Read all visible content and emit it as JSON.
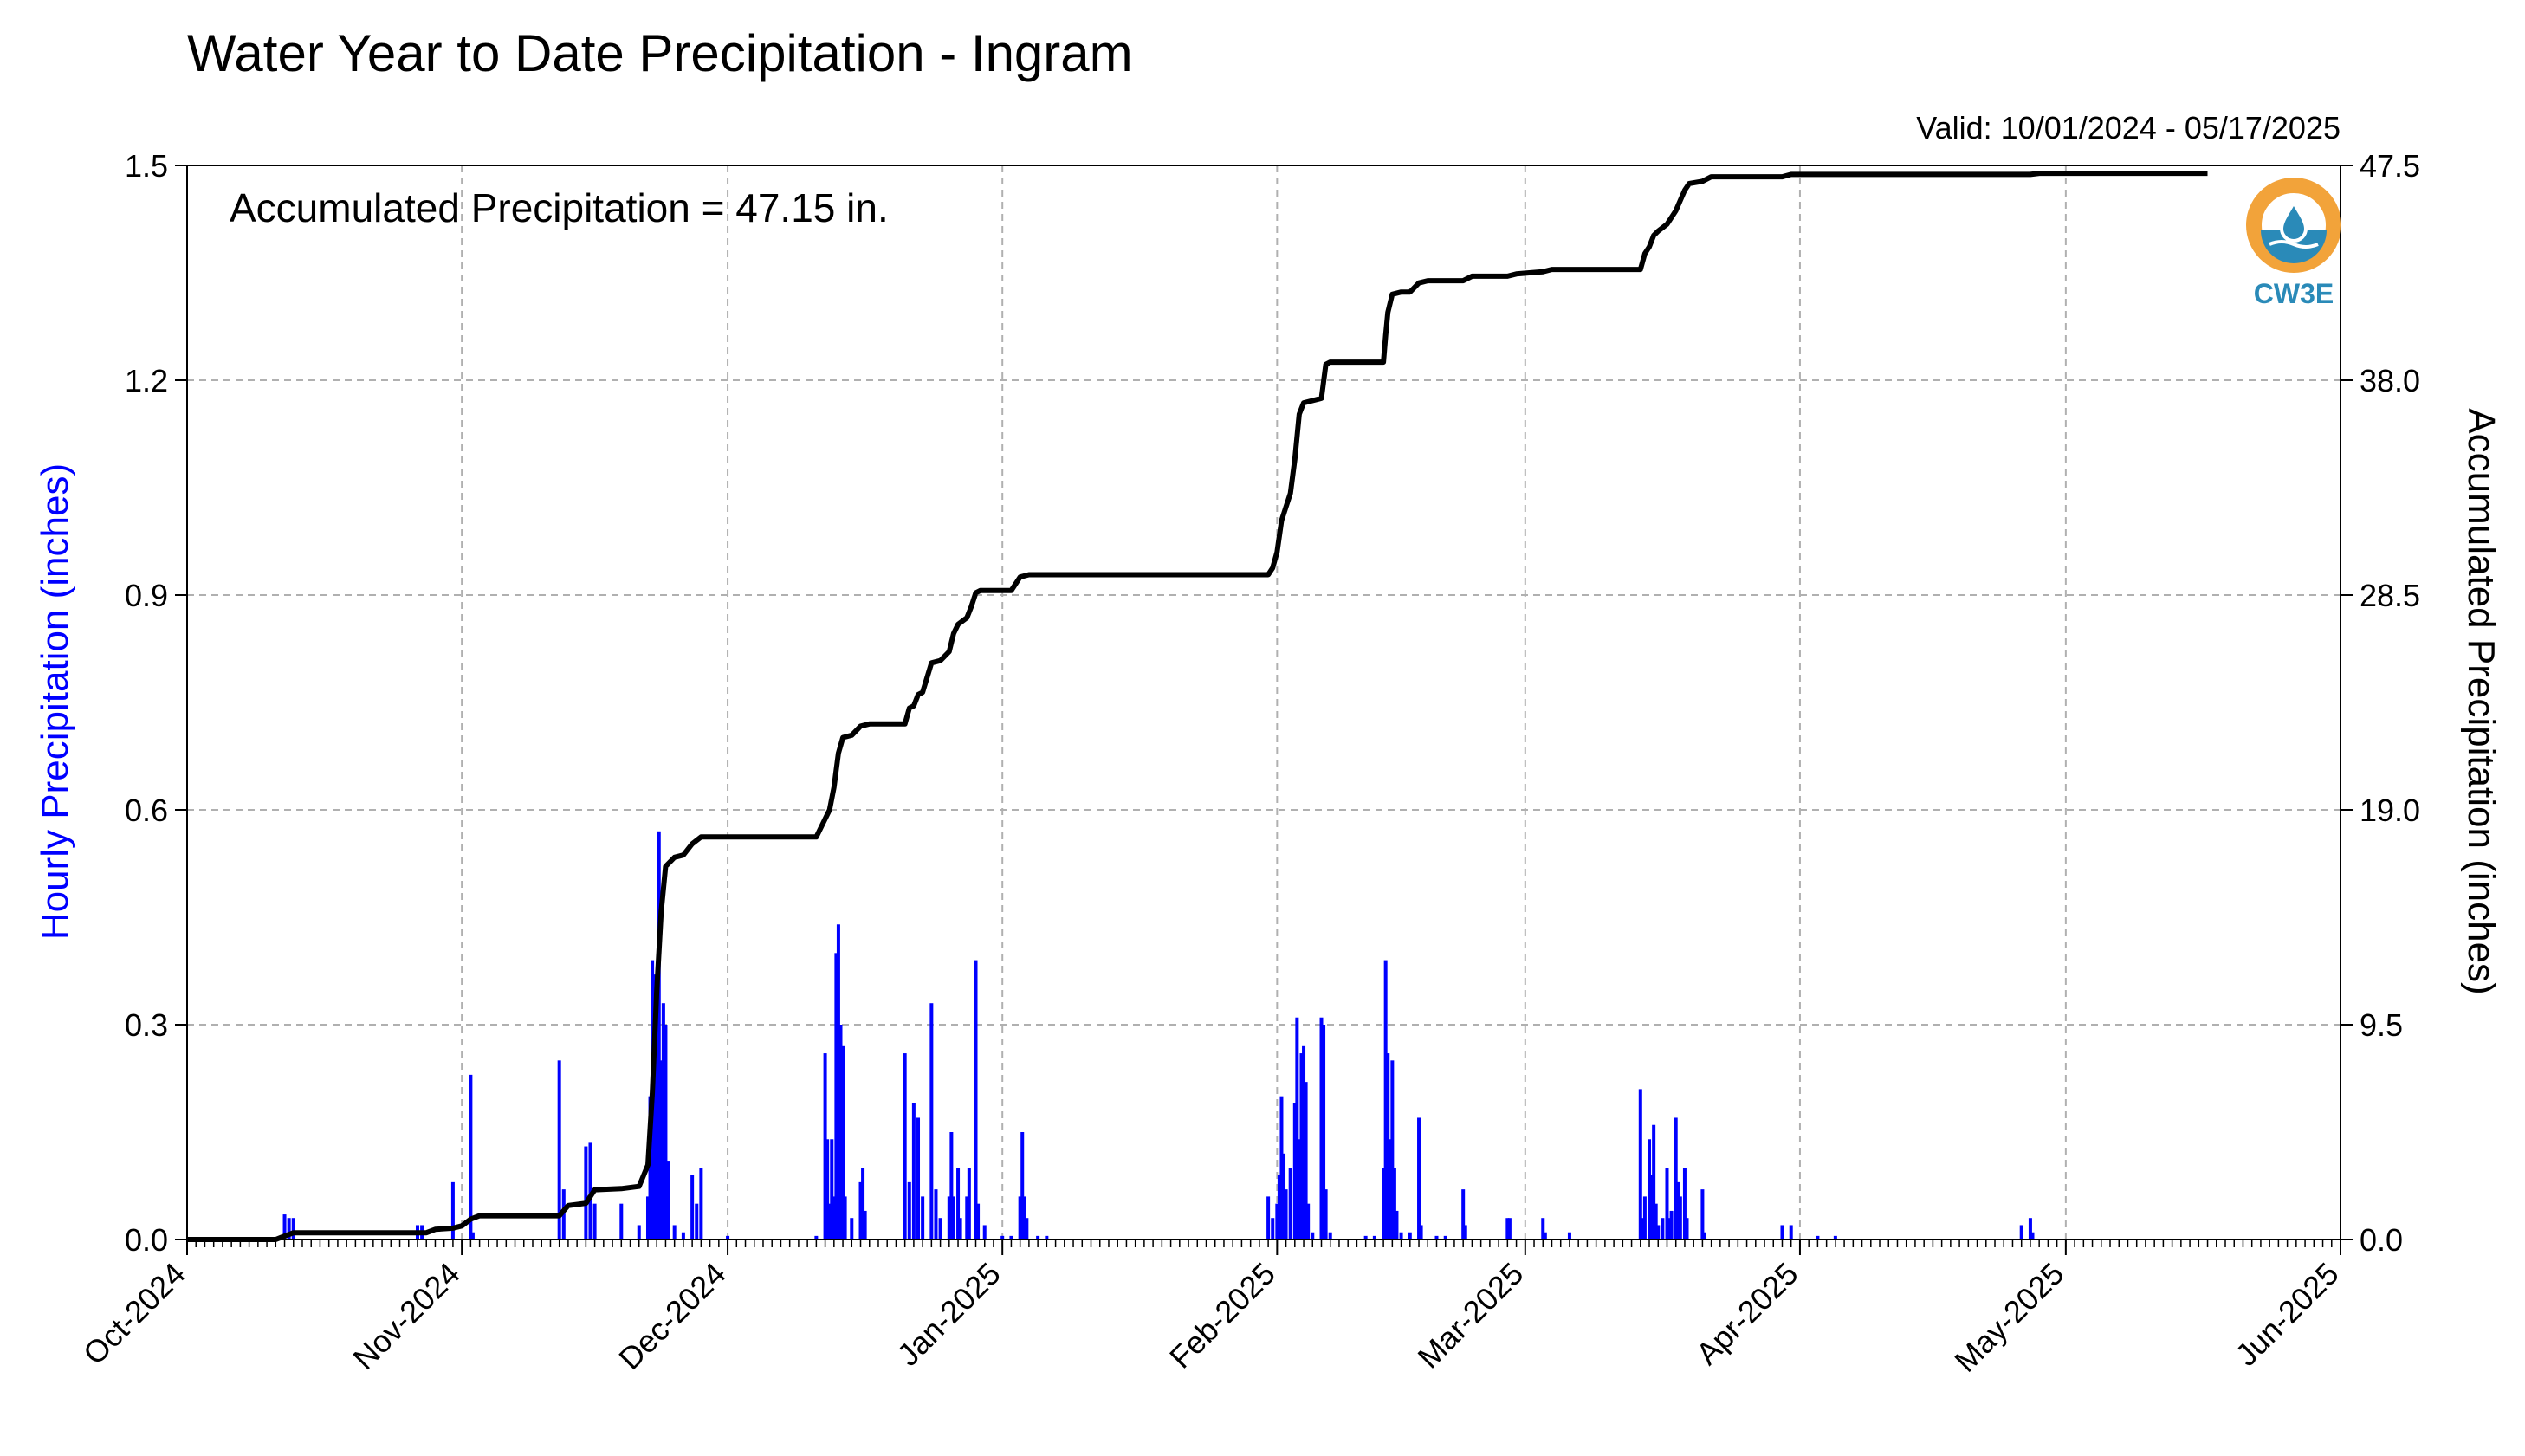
{
  "chart_data": {
    "type": "bar",
    "title": "Water Year to Date Precipitation - Ingram",
    "valid_label": "Valid: 10/01/2024 - 05/17/2025",
    "annotation": "Accumulated Precipitation = 47.15 in.",
    "logo_text": "CW3E",
    "y_left_label": "Hourly Precipitation (inches)",
    "y_right_label": "Accumulated Precipitation (inches)",
    "y_left_lim": [
      0,
      1.5
    ],
    "y_right_lim": [
      0,
      47.5
    ],
    "y_left_ticks": [
      "0.0",
      "0.3",
      "0.6",
      "0.9",
      "1.2",
      "1.5"
    ],
    "y_right_ticks": [
      "0.0",
      "9.5",
      "19.0",
      "28.5",
      "38.0",
      "47.5"
    ],
    "x_lim": [
      "2024-10-01",
      "2025-06-01"
    ],
    "x_tick_dates": [
      "2024-10-01",
      "2024-11-01",
      "2024-12-01",
      "2025-01-01",
      "2025-02-01",
      "2025-03-01",
      "2025-04-01",
      "2025-05-01",
      "2025-06-01"
    ],
    "x_ticks": [
      "Oct-2024",
      "Nov-2024",
      "Dec-2024",
      "Jan-2025",
      "Feb-2025",
      "Mar-2025",
      "Apr-2025",
      "May-2025",
      "Jun-2025"
    ],
    "grid": true,
    "colors": {
      "hourly": "#0000ff",
      "accumulated": "#000000",
      "left_axis_label": "#0000ff",
      "grid": "#b0b0b0",
      "logo_orange": "#f2a33a",
      "logo_blue": "#2a8ab8"
    },
    "series": [
      {
        "name": "Hourly Precipitation (inches)",
        "kind": "bar",
        "points": [
          [
            "2024-10-12",
            0.035
          ],
          [
            "2024-10-12T12:00",
            0.03
          ],
          [
            "2024-10-13",
            0.03
          ],
          [
            "2024-10-27",
            0.02
          ],
          [
            "2024-10-27T12:00",
            0.02
          ],
          [
            "2024-10-31",
            0.08
          ],
          [
            "2024-11-02",
            0.23
          ],
          [
            "2024-11-02T06:00",
            0.01
          ],
          [
            "2024-11-12",
            0.25
          ],
          [
            "2024-11-12T12:00",
            0.07
          ],
          [
            "2024-11-15",
            0.13
          ],
          [
            "2024-11-15T12:00",
            0.135
          ],
          [
            "2024-11-16",
            0.05
          ],
          [
            "2024-11-19",
            0.05
          ],
          [
            "2024-11-21",
            0.02
          ],
          [
            "2024-11-22",
            0.06
          ],
          [
            "2024-11-22T06:00",
            0.2
          ],
          [
            "2024-11-22T12:00",
            0.39
          ],
          [
            "2024-11-22T18:00",
            0.37
          ],
          [
            "2024-11-23",
            0.33
          ],
          [
            "2024-11-23T06:00",
            0.57
          ],
          [
            "2024-11-23T12:00",
            0.25
          ],
          [
            "2024-11-23T18:00",
            0.33
          ],
          [
            "2024-11-24",
            0.3
          ],
          [
            "2024-11-24T06:00",
            0.11
          ],
          [
            "2024-11-25",
            0.02
          ],
          [
            "2024-11-26",
            0.01
          ],
          [
            "2024-11-27",
            0.09
          ],
          [
            "2024-11-27T12:00",
            0.05
          ],
          [
            "2024-11-28",
            0.1
          ],
          [
            "2024-12-01",
            0.005
          ],
          [
            "2024-12-11",
            0.005
          ],
          [
            "2024-12-12",
            0.26
          ],
          [
            "2024-12-12T06:00",
            0.14
          ],
          [
            "2024-12-12T12:00",
            0.05
          ],
          [
            "2024-12-12T18:00",
            0.14
          ],
          [
            "2024-12-13",
            0.06
          ],
          [
            "2024-12-13T06:00",
            0.4
          ],
          [
            "2024-12-13T12:00",
            0.44
          ],
          [
            "2024-12-13T18:00",
            0.3
          ],
          [
            "2024-12-14",
            0.27
          ],
          [
            "2024-12-14T06:00",
            0.06
          ],
          [
            "2024-12-15",
            0.03
          ],
          [
            "2024-12-16",
            0.08
          ],
          [
            "2024-12-16T06:00",
            0.1
          ],
          [
            "2024-12-16T12:00",
            0.04
          ],
          [
            "2024-12-21",
            0.26
          ],
          [
            "2024-12-21T12:00",
            0.08
          ],
          [
            "2024-12-22",
            0.19
          ],
          [
            "2024-12-22T12:00",
            0.17
          ],
          [
            "2024-12-23",
            0.06
          ],
          [
            "2024-12-24",
            0.33
          ],
          [
            "2024-12-24T12:00",
            0.07
          ],
          [
            "2024-12-25",
            0.03
          ],
          [
            "2024-12-26",
            0.06
          ],
          [
            "2024-12-26T06:00",
            0.15
          ],
          [
            "2024-12-26T12:00",
            0.06
          ],
          [
            "2024-12-27",
            0.1
          ],
          [
            "2024-12-27T06:00",
            0.03
          ],
          [
            "2024-12-28",
            0.06
          ],
          [
            "2024-12-28T06:00",
            0.1
          ],
          [
            "2024-12-29",
            0.39
          ],
          [
            "2024-12-29T06:00",
            0.05
          ],
          [
            "2024-12-30",
            0.02
          ],
          [
            "2025-01-01",
            0.005
          ],
          [
            "2025-01-02",
            0.005
          ],
          [
            "2025-01-03",
            0.06
          ],
          [
            "2025-01-03T06:00",
            0.15
          ],
          [
            "2025-01-03T12:00",
            0.06
          ],
          [
            "2025-01-03T18:00",
            0.03
          ],
          [
            "2025-01-05",
            0.005
          ],
          [
            "2025-01-06",
            0.005
          ],
          [
            "2025-01-31",
            0.06
          ],
          [
            "2025-01-31T12:00",
            0.03
          ],
          [
            "2025-02-01",
            0.05
          ],
          [
            "2025-02-01T06:00",
            0.09
          ],
          [
            "2025-02-01T12:00",
            0.2
          ],
          [
            "2025-02-01T18:00",
            0.12
          ],
          [
            "2025-02-02",
            0.07
          ],
          [
            "2025-02-02T12:00",
            0.1
          ],
          [
            "2025-02-03",
            0.19
          ],
          [
            "2025-02-03T06:00",
            0.31
          ],
          [
            "2025-02-03T12:00",
            0.14
          ],
          [
            "2025-02-03T18:00",
            0.26
          ],
          [
            "2025-02-04",
            0.27
          ],
          [
            "2025-02-04T06:00",
            0.22
          ],
          [
            "2025-02-04T12:00",
            0.05
          ],
          [
            "2025-02-05",
            0.01
          ],
          [
            "2025-02-06",
            0.31
          ],
          [
            "2025-02-06T06:00",
            0.3
          ],
          [
            "2025-02-06T12:00",
            0.07
          ],
          [
            "2025-02-07",
            0.01
          ],
          [
            "2025-02-11",
            0.005
          ],
          [
            "2025-02-12",
            0.005
          ],
          [
            "2025-02-13",
            0.1
          ],
          [
            "2025-02-13T06:00",
            0.39
          ],
          [
            "2025-02-13T12:00",
            0.26
          ],
          [
            "2025-02-13T18:00",
            0.14
          ],
          [
            "2025-02-14",
            0.25
          ],
          [
            "2025-02-14T06:00",
            0.1
          ],
          [
            "2025-02-14T12:00",
            0.04
          ],
          [
            "2025-02-15",
            0.01
          ],
          [
            "2025-02-16",
            0.01
          ],
          [
            "2025-02-17",
            0.17
          ],
          [
            "2025-02-17T06:00",
            0.02
          ],
          [
            "2025-02-19",
            0.005
          ],
          [
            "2025-02-20",
            0.005
          ],
          [
            "2025-02-22",
            0.07
          ],
          [
            "2025-02-22T06:00",
            0.02
          ],
          [
            "2025-02-27",
            0.03
          ],
          [
            "2025-02-27T06:00",
            0.03
          ],
          [
            "2025-03-03",
            0.03
          ],
          [
            "2025-03-03T06:00",
            0.01
          ],
          [
            "2025-03-06",
            0.01
          ],
          [
            "2025-03-14",
            0.21
          ],
          [
            "2025-03-14T06:00",
            0.03
          ],
          [
            "2025-03-14T12:00",
            0.06
          ],
          [
            "2025-03-15",
            0.14
          ],
          [
            "2025-03-15T06:00",
            0.09
          ],
          [
            "2025-03-15T12:00",
            0.16
          ],
          [
            "2025-03-15T18:00",
            0.05
          ],
          [
            "2025-03-16",
            0.02
          ],
          [
            "2025-03-16T12:00",
            0.03
          ],
          [
            "2025-03-17",
            0.1
          ],
          [
            "2025-03-17T06:00",
            0.03
          ],
          [
            "2025-03-17T12:00",
            0.04
          ],
          [
            "2025-03-18",
            0.17
          ],
          [
            "2025-03-18T06:00",
            0.08
          ],
          [
            "2025-03-18T12:00",
            0.06
          ],
          [
            "2025-03-19",
            0.1
          ],
          [
            "2025-03-19T06:00",
            0.03
          ],
          [
            "2025-03-21",
            0.07
          ],
          [
            "2025-03-21T06:00",
            0.01
          ],
          [
            "2025-03-30",
            0.02
          ],
          [
            "2025-03-31",
            0.02
          ],
          [
            "2025-04-03",
            0.005
          ],
          [
            "2025-04-05",
            0.005
          ],
          [
            "2025-04-26",
            0.02
          ],
          [
            "2025-04-27",
            0.03
          ],
          [
            "2025-04-27T06:00",
            0.01
          ]
        ]
      },
      {
        "name": "Accumulated Precipitation (inches)",
        "kind": "line",
        "points": [
          [
            "2024-10-01",
            0.0
          ],
          [
            "2024-10-11",
            0.0
          ],
          [
            "2024-10-12",
            0.15
          ],
          [
            "2024-10-13",
            0.3
          ],
          [
            "2024-10-28",
            0.3
          ],
          [
            "2024-10-29",
            0.45
          ],
          [
            "2024-10-31",
            0.5
          ],
          [
            "2024-11-01",
            0.6
          ],
          [
            "2024-11-02",
            0.9
          ],
          [
            "2024-11-03",
            1.05
          ],
          [
            "2024-11-12",
            1.05
          ],
          [
            "2024-11-13",
            1.5
          ],
          [
            "2024-11-15",
            1.6
          ],
          [
            "2024-11-16",
            2.2
          ],
          [
            "2024-11-19",
            2.25
          ],
          [
            "2024-11-21",
            2.35
          ],
          [
            "2024-11-22",
            3.3
          ],
          [
            "2024-11-22T12:00",
            6.5
          ],
          [
            "2024-11-23",
            11.0
          ],
          [
            "2024-11-23T12:00",
            14.5
          ],
          [
            "2024-11-24",
            16.5
          ],
          [
            "2024-11-25",
            16.9
          ],
          [
            "2024-11-26",
            17.0
          ],
          [
            "2024-11-27",
            17.5
          ],
          [
            "2024-11-28",
            17.8
          ],
          [
            "2024-12-01",
            17.8
          ],
          [
            "2024-12-11",
            17.8
          ],
          [
            "2024-12-12",
            18.6
          ],
          [
            "2024-12-12T12:00",
            19.0
          ],
          [
            "2024-12-13",
            20.0
          ],
          [
            "2024-12-13T12:00",
            21.5
          ],
          [
            "2024-12-14",
            22.2
          ],
          [
            "2024-12-15",
            22.3
          ],
          [
            "2024-12-16",
            22.7
          ],
          [
            "2024-12-17",
            22.8
          ],
          [
            "2024-12-21",
            22.8
          ],
          [
            "2024-12-21T12:00",
            23.5
          ],
          [
            "2024-12-22",
            23.6
          ],
          [
            "2024-12-22T12:00",
            24.1
          ],
          [
            "2024-12-23",
            24.2
          ],
          [
            "2024-12-24",
            25.5
          ],
          [
            "2024-12-25",
            25.6
          ],
          [
            "2024-12-26",
            26.0
          ],
          [
            "2024-12-26T12:00",
            26.8
          ],
          [
            "2024-12-27",
            27.2
          ],
          [
            "2024-12-28",
            27.5
          ],
          [
            "2024-12-28T12:00",
            28.0
          ],
          [
            "2024-12-29",
            28.6
          ],
          [
            "2024-12-29T12:00",
            28.7
          ],
          [
            "2025-01-02",
            28.7
          ],
          [
            "2025-01-03",
            29.3
          ],
          [
            "2025-01-04",
            29.4
          ],
          [
            "2025-01-31",
            29.4
          ],
          [
            "2025-01-31T12:00",
            29.7
          ],
          [
            "2025-02-01",
            30.4
          ],
          [
            "2025-02-01T12:00",
            31.8
          ],
          [
            "2025-02-02",
            32.4
          ],
          [
            "2025-02-02T12:00",
            33.0
          ],
          [
            "2025-02-03",
            34.5
          ],
          [
            "2025-02-03T12:00",
            36.5
          ],
          [
            "2025-02-04",
            37.0
          ],
          [
            "2025-02-05",
            37.1
          ],
          [
            "2025-02-06",
            37.2
          ],
          [
            "2025-02-06T12:00",
            38.7
          ],
          [
            "2025-02-07",
            38.8
          ],
          [
            "2025-02-13",
            38.8
          ],
          [
            "2025-02-13T06:00",
            40.0
          ],
          [
            "2025-02-13T12:00",
            41.0
          ],
          [
            "2025-02-14",
            41.8
          ],
          [
            "2025-02-15",
            41.9
          ],
          [
            "2025-02-16",
            41.9
          ],
          [
            "2025-02-17",
            42.3
          ],
          [
            "2025-02-18",
            42.4
          ],
          [
            "2025-02-22",
            42.4
          ],
          [
            "2025-02-23",
            42.6
          ],
          [
            "2025-02-27",
            42.6
          ],
          [
            "2025-02-28",
            42.7
          ],
          [
            "2025-03-03",
            42.8
          ],
          [
            "2025-03-04",
            42.9
          ],
          [
            "2025-03-14",
            42.9
          ],
          [
            "2025-03-14T12:00",
            43.6
          ],
          [
            "2025-03-15",
            43.9
          ],
          [
            "2025-03-15T12:00",
            44.4
          ],
          [
            "2025-03-16",
            44.6
          ],
          [
            "2025-03-17",
            44.9
          ],
          [
            "2025-03-18",
            45.5
          ],
          [
            "2025-03-19",
            46.4
          ],
          [
            "2025-03-19T12:00",
            46.7
          ],
          [
            "2025-03-21",
            46.8
          ],
          [
            "2025-03-22",
            47.0
          ],
          [
            "2025-03-30",
            47.0
          ],
          [
            "2025-03-31",
            47.1
          ],
          [
            "2025-04-27",
            47.1
          ],
          [
            "2025-04-28",
            47.15
          ],
          [
            "2025-05-17",
            47.15
          ]
        ]
      }
    ]
  }
}
